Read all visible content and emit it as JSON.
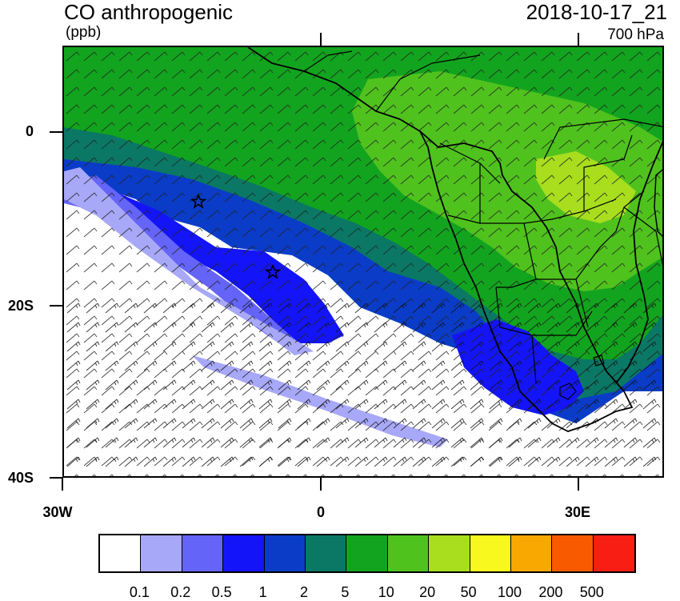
{
  "header": {
    "title": "CO anthropogenic",
    "units": "(ppb)",
    "timestamp": "2018-10-17_21",
    "pressure_level": "700 hPa"
  },
  "axes": {
    "latitude_labels": [
      "0",
      "20S",
      "40S"
    ],
    "longitude_labels": [
      "30W",
      "0",
      "30E"
    ]
  },
  "legend": {
    "colors": [
      "#ffffff",
      "#a8a8f8",
      "#6464f8",
      "#1414f8",
      "#0a3cc8",
      "#0a7864",
      "#12a41e",
      "#50c21e",
      "#a8de1e",
      "#f8f81e",
      "#f8a800",
      "#f85a00",
      "#f81e14"
    ],
    "levels": [
      "0.1",
      "0.2",
      "0.5",
      "1",
      "2",
      "5",
      "10",
      "20",
      "50",
      "100",
      "200",
      "500"
    ]
  },
  "map": {
    "variable": "CO anthropogenic",
    "region": "South Atlantic and Southern Africa",
    "markers": [
      "star-marker",
      "star-marker"
    ]
  }
}
